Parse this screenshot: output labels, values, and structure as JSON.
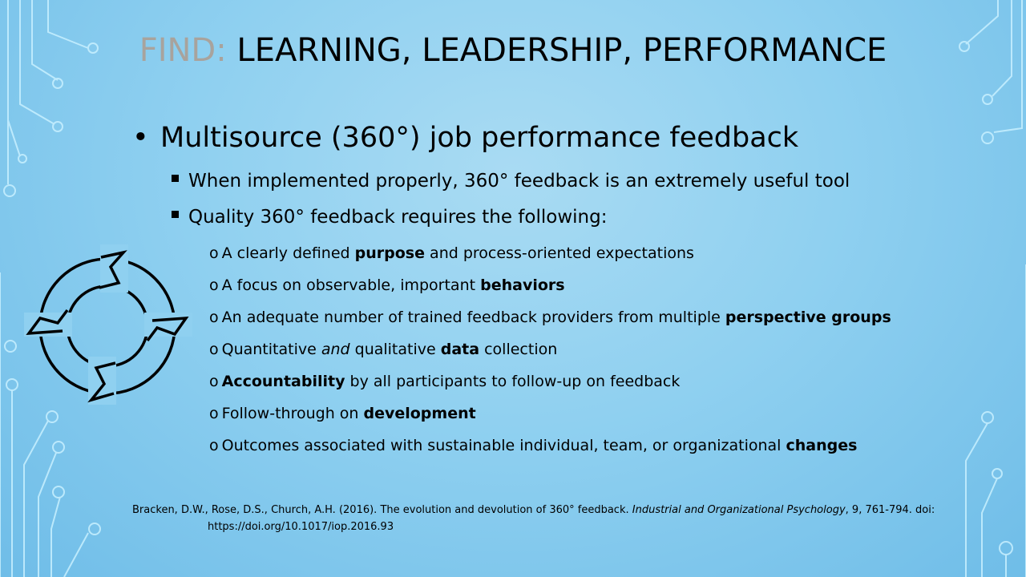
{
  "title": {
    "prefix": "FIND:",
    "rest": " LEARNING, LEADERSHIP, PERFORMANCE"
  },
  "main_bullet": "Multisource (360°) job performance feedback",
  "sub_bullets": [
    "When implemented properly, 360° feedback is an extremely useful tool",
    "Quality 360° feedback requires the following:"
  ],
  "items": [
    {
      "before": "A clearly defined ",
      "bold": "purpose",
      "after": " and process-oriented expectations"
    },
    {
      "before": "A focus on observable, important ",
      "bold": "behaviors",
      "after": ""
    },
    {
      "before": "An adequate number of trained feedback providers from multiple ",
      "bold": "perspective groups",
      "after": ""
    },
    {
      "before": "Quantitative ",
      "italic": "and",
      "middle": " qualitative ",
      "bold": "data",
      "after": " collection"
    },
    {
      "before": "",
      "bold": "Accountability",
      "after": " by all participants to follow-up on feedback"
    },
    {
      "before": "Follow-through on ",
      "bold": "development",
      "after": ""
    },
    {
      "before": "Outcomes associated with sustainable individual, team, or organizational ",
      "bold": "changes",
      "after": ""
    }
  ],
  "reference": {
    "text1": "Bracken, D.W., Rose, D.S., Church, A.H. (2016). The evolution and devolution of 360° feedback. ",
    "journal": "Industrial and Organizational Psychology",
    "text2": ", 9, 761-794. doi:",
    "doi": "https://doi.org/10.1017/iop.2016.93"
  },
  "icons": {
    "bullet_marker": "o",
    "cycle": "cycle-arrows-icon"
  }
}
